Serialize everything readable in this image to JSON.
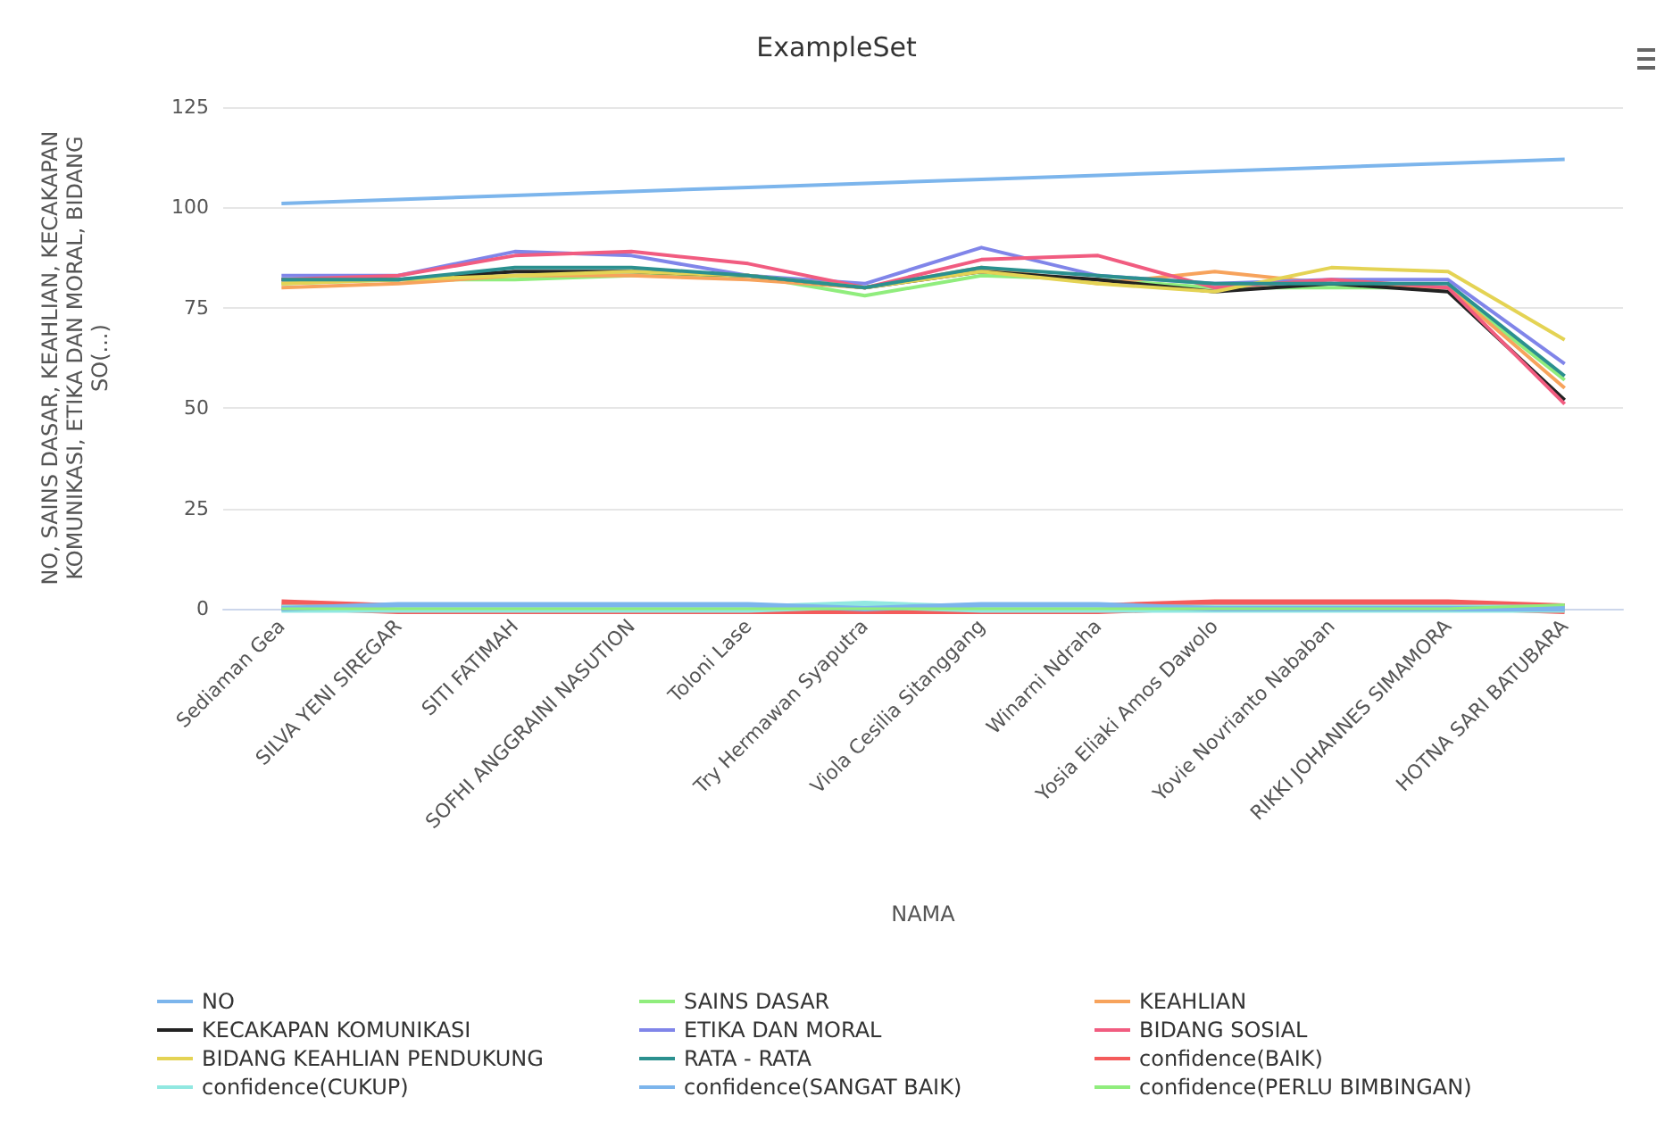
{
  "chart_data": {
    "type": "line",
    "title": "ExampleSet",
    "xlabel": "NAMA",
    "ylabel": "NO, SAINS DASAR, KEAHLIAN, KECAKAPAN KOMUNIKASI, ETIKA DAN MORAL, BIDANG SO(...)",
    "categories": [
      "Sediaman Gea",
      "SILVA YENI SIREGAR",
      "SITI FATIMAH",
      "SOFHI ANGGRAINI NASUTION",
      "Toloni Lase",
      "Try Hermawan Syaputra",
      "Viola Cesilia Sitanggang",
      "Winarni Ndraha",
      "Yosia Eliaki Amos Dawolo",
      "Yovie Novrianto Nababan",
      "RIKKI JOHANNES SIMAMORA",
      "HOTNA SARI BATUBARA"
    ],
    "series": [
      {
        "name": "NO",
        "color": "#7cb5ec",
        "values": [
          101,
          102,
          103,
          104,
          105,
          106,
          107,
          108,
          109,
          110,
          111,
          112
        ]
      },
      {
        "name": "SAINS DASAR",
        "color": "#90ed7d",
        "values": [
          81,
          82,
          82,
          83,
          83,
          78,
          83,
          82,
          80,
          80,
          80,
          57
        ]
      },
      {
        "name": "KEAHLIAN",
        "color": "#f7a35c",
        "values": [
          80,
          81,
          83,
          83,
          82,
          80,
          85,
          81,
          84,
          81,
          80,
          55
        ]
      },
      {
        "name": "KECAKAPAN KOMUNIKASI",
        "color": "#222222",
        "values": [
          82,
          82,
          84,
          84,
          83,
          80,
          84,
          82,
          79,
          81,
          79,
          52
        ]
      },
      {
        "name": "ETIKA DAN MORAL",
        "color": "#8085e9",
        "values": [
          83,
          83,
          89,
          88,
          83,
          81,
          90,
          83,
          81,
          82,
          82,
          61
        ]
      },
      {
        "name": "BIDANG SOSIAL",
        "color": "#f15c80",
        "values": [
          82,
          83,
          88,
          89,
          86,
          80,
          87,
          88,
          80,
          82,
          80,
          51
        ]
      },
      {
        "name": "BIDANG KEAHLIAN PENDUKUNG",
        "color": "#e4d354",
        "values": [
          81,
          82,
          83,
          84,
          83,
          80,
          84,
          81,
          79,
          85,
          84,
          67
        ]
      },
      {
        "name": "RATA - RATA",
        "color": "#2b908f",
        "values": [
          82,
          82,
          85,
          85,
          83,
          80,
          85,
          83,
          81,
          81,
          81,
          58
        ]
      },
      {
        "name": "confidence(BAIK)",
        "color": "#f45b5b",
        "values": [
          1,
          0,
          0,
          0,
          0,
          0,
          0,
          0,
          1,
          1,
          1,
          0
        ]
      },
      {
        "name": "confidence(CUKUP)",
        "color": "#91e8e1",
        "values": [
          0,
          0,
          0,
          0,
          0,
          1,
          0,
          0,
          0,
          0,
          0,
          0
        ]
      },
      {
        "name": "confidence(SANGAT BAIK)",
        "color": "#7cb5ec",
        "values": [
          0,
          1,
          1,
          1,
          1,
          0,
          1,
          1,
          0,
          0,
          0,
          0
        ]
      },
      {
        "name": "confidence(PERLU BIMBINGAN)",
        "color": "#90ed7d",
        "values": [
          0,
          0,
          0,
          0,
          0,
          0,
          0,
          0,
          0,
          0,
          0,
          1
        ]
      }
    ],
    "ylim": [
      0,
      125
    ],
    "yticks": [
      0,
      25,
      50,
      75,
      100,
      125
    ],
    "grid": "y",
    "legend": "bottom",
    "marker": "none",
    "line_style": "solid"
  }
}
